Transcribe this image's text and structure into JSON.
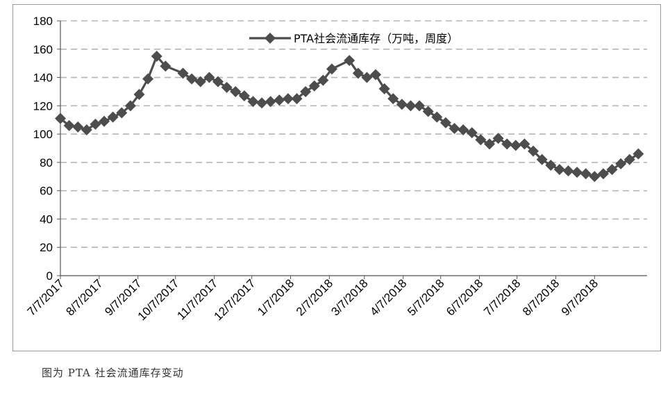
{
  "caption": "图为 PTA 社会流通库存变动",
  "chart_data": {
    "type": "line",
    "title": "",
    "xlabel": "",
    "ylabel": "",
    "ylim": [
      0,
      180
    ],
    "yticks": [
      0,
      20,
      40,
      60,
      80,
      100,
      120,
      140,
      160,
      180
    ],
    "grid": "horizontal-dashed",
    "legend_position": "top-center",
    "x_tick_labels": [
      "7/7/2017",
      "8/7/2017",
      "9/7/2017",
      "10/7/2017",
      "11/7/2017",
      "12/7/2017",
      "1/7/2018",
      "2/7/2018",
      "3/7/2018",
      "4/7/2018",
      "5/7/2018",
      "6/7/2018",
      "7/7/2018",
      "8/7/2018",
      "9/7/2018"
    ],
    "x_range": [
      "2017-07-07",
      "2018-10-19"
    ],
    "line_color": "#4d4d4d",
    "series": [
      {
        "name": "PTA社会流通库存（万吨，周度）",
        "points": [
          [
            "2017-07-07",
            111
          ],
          [
            "2017-07-14",
            106
          ],
          [
            "2017-07-21",
            105
          ],
          [
            "2017-07-28",
            103
          ],
          [
            "2017-08-04",
            107
          ],
          [
            "2017-08-11",
            109
          ],
          [
            "2017-08-18",
            112
          ],
          [
            "2017-08-25",
            115
          ],
          [
            "2017-09-01",
            120
          ],
          [
            "2017-09-08",
            128
          ],
          [
            "2017-09-15",
            139
          ],
          [
            "2017-09-22",
            155
          ],
          [
            "2017-09-29",
            148
          ],
          [
            "2017-10-13",
            143
          ],
          [
            "2017-10-20",
            139
          ],
          [
            "2017-10-27",
            137
          ],
          [
            "2017-11-03",
            140
          ],
          [
            "2017-11-10",
            137
          ],
          [
            "2017-11-17",
            133
          ],
          [
            "2017-11-24",
            130
          ],
          [
            "2017-12-01",
            127
          ],
          [
            "2017-12-08",
            123
          ],
          [
            "2017-12-15",
            122
          ],
          [
            "2017-12-22",
            123
          ],
          [
            "2017-12-29",
            124
          ],
          [
            "2018-01-05",
            125
          ],
          [
            "2018-01-12",
            125
          ],
          [
            "2018-01-19",
            130
          ],
          [
            "2018-01-26",
            134
          ],
          [
            "2018-02-02",
            138
          ],
          [
            "2018-02-09",
            146
          ],
          [
            "2018-02-23",
            152
          ],
          [
            "2018-03-02",
            143
          ],
          [
            "2018-03-09",
            140
          ],
          [
            "2018-03-16",
            142
          ],
          [
            "2018-03-23",
            132
          ],
          [
            "2018-03-30",
            125
          ],
          [
            "2018-04-06",
            121
          ],
          [
            "2018-04-13",
            120
          ],
          [
            "2018-04-20",
            120
          ],
          [
            "2018-04-27",
            116
          ],
          [
            "2018-05-04",
            112
          ],
          [
            "2018-05-11",
            108
          ],
          [
            "2018-05-18",
            104
          ],
          [
            "2018-05-25",
            103
          ],
          [
            "2018-06-01",
            101
          ],
          [
            "2018-06-08",
            96
          ],
          [
            "2018-06-15",
            93
          ],
          [
            "2018-06-22",
            97
          ],
          [
            "2018-06-29",
            93
          ],
          [
            "2018-07-06",
            92
          ],
          [
            "2018-07-13",
            93
          ],
          [
            "2018-07-20",
            88
          ],
          [
            "2018-07-27",
            82
          ],
          [
            "2018-08-03",
            78
          ],
          [
            "2018-08-10",
            75
          ],
          [
            "2018-08-17",
            74
          ],
          [
            "2018-08-24",
            73
          ],
          [
            "2018-08-31",
            72
          ],
          [
            "2018-09-07",
            70
          ],
          [
            "2018-09-14",
            72
          ],
          [
            "2018-09-21",
            75
          ],
          [
            "2018-09-28",
            79
          ],
          [
            "2018-10-05",
            82
          ],
          [
            "2018-10-12",
            86
          ]
        ]
      }
    ]
  }
}
